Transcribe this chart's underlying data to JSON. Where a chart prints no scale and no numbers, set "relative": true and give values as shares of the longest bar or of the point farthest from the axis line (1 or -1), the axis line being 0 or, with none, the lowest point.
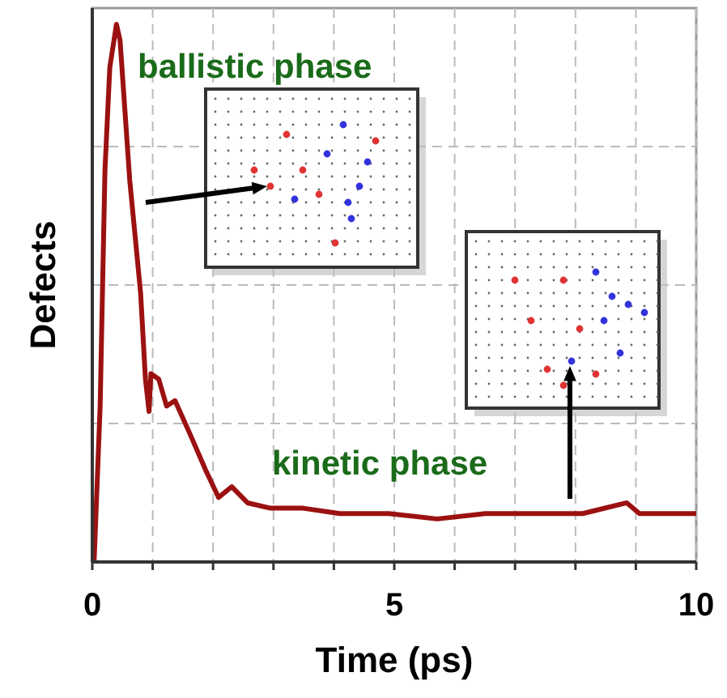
{
  "chart_data": {
    "type": "line",
    "xlabel": "Time (ps)",
    "ylabel": "Defects",
    "relative": true,
    "xlim": [
      0,
      10
    ],
    "xticks": [
      0,
      {
        "value": 1,
        "label": null
      },
      {
        "value": 2,
        "label": null
      },
      {
        "value": 3,
        "label": null
      },
      {
        "value": 4,
        "label": null
      },
      5,
      {
        "value": 6,
        "label": null
      },
      {
        "value": 7,
        "label": null
      },
      {
        "value": 8,
        "label": null
      },
      {
        "value": 9,
        "label": null
      },
      10
    ],
    "grid": true,
    "annotations": [
      "ballistic phase",
      "kinetic phase"
    ],
    "series": [
      {
        "color": "#9b1111",
        "x": [
          0.03,
          0.13,
          0.21,
          0.29,
          0.4,
          0.46,
          0.62,
          0.8,
          0.88,
          0.94,
          0.97,
          1.1,
          1.23,
          1.37,
          1.61,
          1.88,
          2.09,
          2.31,
          2.57,
          2.95,
          3.49,
          4.1,
          4.91,
          5.71,
          6.51,
          7.32,
          8.12,
          8.85,
          9.06,
          10
        ],
        "values": [
          0,
          0.29,
          0.73,
          0.92,
          1,
          0.97,
          0.71,
          0.5,
          0.34,
          0.28,
          0.35,
          0.34,
          0.29,
          0.3,
          0.24,
          0.17,
          0.12,
          0.14,
          0.11,
          0.1,
          0.1,
          0.09,
          0.09,
          0.08,
          0.09,
          0.09,
          0.09,
          0.11,
          0.09,
          0.09
        ]
      }
    ]
  }
}
